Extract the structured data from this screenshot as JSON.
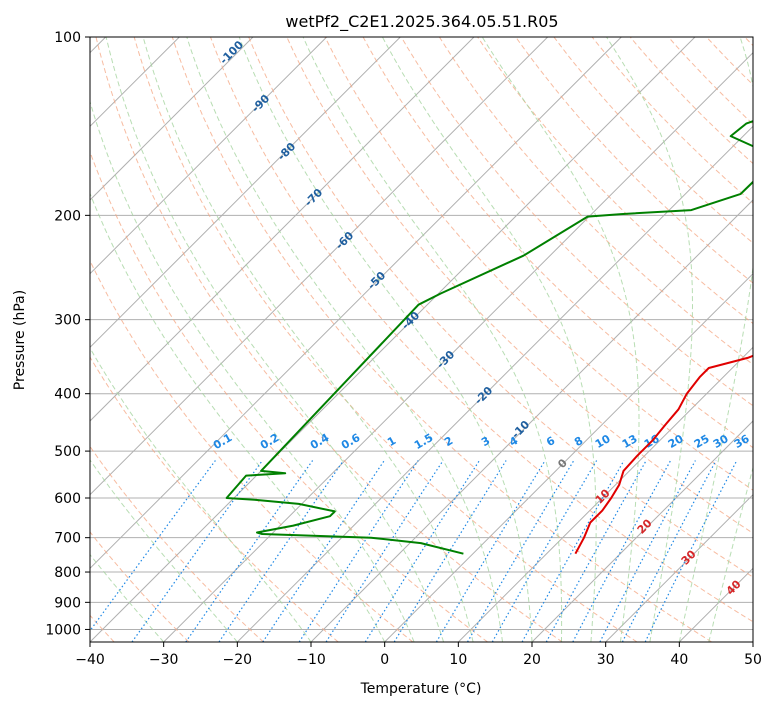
{
  "chart_data": {
    "type": "line",
    "title": "wetPf2_C2E1.2025.364.05.51.R05",
    "xlabel": "Temperature (°C)",
    "ylabel": "Pressure (hPa)",
    "xlim": [
      -40,
      50
    ],
    "ylim": [
      1050,
      100
    ],
    "y_scale": "log",
    "grid": true,
    "x_ticks": [
      "−40",
      "−30",
      "−20",
      "−10",
      "0",
      "10",
      "20",
      "30",
      "40",
      "50"
    ],
    "y_ticks": [
      {
        "value": 100,
        "label": "100"
      },
      {
        "value": 200,
        "label": "200"
      },
      {
        "value": 300,
        "label": "300"
      },
      {
        "value": 400,
        "label": "400"
      },
      {
        "value": 500,
        "label": "500"
      },
      {
        "value": 600,
        "label": "600"
      },
      {
        "value": 700,
        "label": "700"
      },
      {
        "value": 800,
        "label": "800"
      },
      {
        "value": 900,
        "label": "900"
      },
      {
        "value": 1000,
        "label": "1000"
      }
    ],
    "series": [
      {
        "role": "temperature",
        "color": "#e00000",
        "points": [
          [
            13.9,
            745
          ],
          [
            12.9,
            700
          ],
          [
            11.7,
            660
          ],
          [
            11.7,
            630
          ],
          [
            11.2,
            600
          ],
          [
            10.5,
            570
          ],
          [
            9.2,
            540
          ],
          [
            9.0,
            510
          ],
          [
            9.0,
            480
          ],
          [
            8.6,
            450
          ],
          [
            8.3,
            425
          ],
          [
            7.3,
            400
          ],
          [
            6.8,
            375
          ],
          [
            6.8,
            362
          ],
          [
            10.7,
            348
          ],
          [
            13.9,
            328
          ],
          [
            14.5,
            300
          ],
          [
            15.1,
            285
          ],
          [
            13.2,
            256
          ],
          [
            9.8,
            222
          ],
          [
            7.3,
            192
          ],
          [
            5.6,
            169
          ],
          [
            5.5,
            160
          ],
          [
            7.7,
            148
          ],
          [
            8.3,
            137
          ],
          [
            7.7,
            127
          ],
          [
            7.7,
            117
          ],
          [
            9.0,
            107
          ],
          [
            11.2,
            100
          ]
        ]
      },
      {
        "role": "dewpoint",
        "color": "#008000",
        "points": [
          [
            -1.3,
            745
          ],
          [
            -8.5,
            715
          ],
          [
            -16,
            700
          ],
          [
            -31.3,
            690
          ],
          [
            -32.2,
            686
          ],
          [
            -28.2,
            668
          ],
          [
            -24.5,
            644
          ],
          [
            -24.5,
            632
          ],
          [
            -30.4,
            614
          ],
          [
            -37,
            604
          ],
          [
            -41,
            600
          ],
          [
            -41.4,
            550
          ],
          [
            -36.4,
            545
          ],
          [
            -40,
            540
          ],
          [
            -41.2,
            283
          ],
          [
            -39.7,
            271
          ],
          [
            -33.6,
            234
          ],
          [
            -30.2,
            201
          ],
          [
            -26,
            199
          ],
          [
            -17,
            196
          ],
          [
            -12.5,
            184
          ],
          [
            -12.4,
            167
          ],
          [
            -14.2,
            158
          ],
          [
            -17.2,
            153
          ],
          [
            -21.7,
            147
          ],
          [
            -21.3,
            140
          ],
          [
            -16.4,
            130
          ],
          [
            -10.6,
            117
          ],
          [
            -6.5,
            107
          ],
          [
            -2.9,
            100
          ]
        ]
      }
    ],
    "isotherm_labels": [
      "-100",
      "-90",
      "-80",
      "-70",
      "-60",
      "-50",
      "-40",
      "-30",
      "-20",
      "-10"
    ],
    "mixing_ratio_labels": [
      "0.1",
      "0.2",
      "0.4",
      "0.6",
      "1",
      "1.5",
      "2",
      "3",
      "4",
      "6",
      "8",
      "10",
      "13",
      "16",
      "20",
      "25",
      "30",
      "36"
    ],
    "moist_adiabat_labels": [
      "0",
      "10",
      "20",
      "30",
      "40"
    ],
    "colors": {
      "isotherm": "#b0b0b0",
      "dry_adiabat": "#f4a582",
      "moist_adiabat": "#a6d4a0",
      "mixing_ratio": "#1e88e5",
      "isotherm_label": "#1f5f9f",
      "moist_label_warm": "#d62728",
      "moist_label_zero": "#777777",
      "mixing_label": "#1e88e5"
    }
  }
}
